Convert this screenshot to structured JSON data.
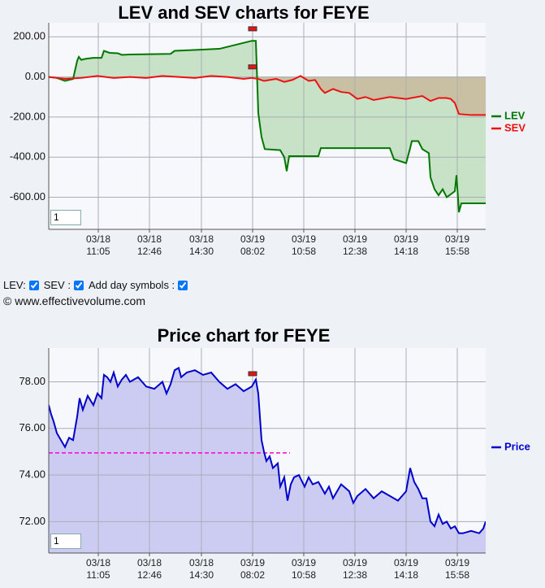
{
  "chart_data": [
    {
      "type": "line",
      "title": "LEV and SEV charts for FEYE",
      "zoom": "1",
      "xlim": [
        0,
        538
      ],
      "xticks": [
        {
          "value": 61,
          "label": "03/18 11:05"
        },
        {
          "value": 124,
          "label": "03/18 12:46"
        },
        {
          "value": 188,
          "label": "03/18 14:30"
        },
        {
          "value": 251,
          "label": "03/19 08:02"
        },
        {
          "value": 314,
          "label": "03/19 10:58"
        },
        {
          "value": 377,
          "label": "03/19 12:38"
        },
        {
          "value": 440,
          "label": "03/19 14:18"
        },
        {
          "value": 503,
          "label": "03/19 15:58"
        }
      ],
      "ylim": [
        -760,
        270
      ],
      "yticks": [
        {
          "value": 200,
          "label": "200.00"
        },
        {
          "value": 0,
          "label": "0.00"
        },
        {
          "value": -200,
          "label": "-200.00"
        },
        {
          "value": -400,
          "label": "-400.00"
        },
        {
          "value": -600,
          "label": "-600.00"
        }
      ],
      "grid": true,
      "legend": "right",
      "series": [
        {
          "name": "LEV",
          "color": "#007700",
          "fill": "#c8e2c8",
          "x": [
            0,
            10,
            20,
            30,
            35,
            37,
            40,
            45,
            55,
            65,
            68,
            75,
            85,
            90,
            100,
            150,
            155,
            210,
            240,
            245,
            250,
            255,
            258,
            262,
            266,
            285,
            290,
            293,
            296,
            332,
            335,
            420,
            425,
            440,
            445,
            447,
            455,
            460,
            468,
            470,
            475,
            480,
            485,
            490,
            500,
            502,
            504,
            505,
            508,
            538
          ],
          "values": [
            0,
            -5,
            -20,
            -10,
            80,
            100,
            85,
            90,
            95,
            95,
            130,
            120,
            118,
            110,
            112,
            115,
            130,
            140,
            170,
            175,
            180,
            180,
            -180,
            -300,
            -360,
            -365,
            -400,
            -470,
            -395,
            -395,
            -355,
            -355,
            -410,
            -430,
            -355,
            -320,
            -320,
            -360,
            -380,
            -500,
            -560,
            -590,
            -560,
            -600,
            -570,
            -490,
            -610,
            -675,
            -630,
            -630
          ]
        },
        {
          "name": "SEV",
          "color": "#ee1111",
          "fill": "#c9a88a",
          "x": [
            0,
            20,
            40,
            60,
            80,
            100,
            120,
            140,
            160,
            180,
            200,
            220,
            240,
            250,
            258,
            265,
            280,
            290,
            300,
            310,
            320,
            328,
            335,
            340,
            350,
            360,
            370,
            380,
            390,
            400,
            420,
            440,
            460,
            470,
            480,
            490,
            495,
            500,
            505,
            520,
            538
          ],
          "values": [
            0,
            -10,
            -5,
            5,
            -5,
            0,
            -5,
            5,
            0,
            -5,
            5,
            0,
            -10,
            -5,
            -10,
            -20,
            -10,
            -25,
            -15,
            5,
            -20,
            -15,
            -60,
            -80,
            -60,
            -75,
            -80,
            -110,
            -100,
            -115,
            -100,
            -110,
            -95,
            -120,
            -105,
            -105,
            -110,
            -130,
            -185,
            -190,
            -190
          ]
        }
      ],
      "day_markers": [
        {
          "x": 251,
          "y": 240
        },
        {
          "x": 251,
          "y": 50
        }
      ]
    },
    {
      "type": "line",
      "title": "Price chart for FEYE",
      "zoom": "1",
      "xlim": [
        0,
        538
      ],
      "xticks": [
        {
          "value": 61,
          "label": "03/18 11:05"
        },
        {
          "value": 124,
          "label": "03/18 12:46"
        },
        {
          "value": 188,
          "label": "03/18 14:30"
        },
        {
          "value": 251,
          "label": "03/19 08:02"
        },
        {
          "value": 314,
          "label": "03/19 10:58"
        },
        {
          "value": 377,
          "label": "03/19 12:38"
        },
        {
          "value": 440,
          "label": "03/19 14:18"
        },
        {
          "value": 503,
          "label": "03/19 15:58"
        }
      ],
      "ylim": [
        70.65,
        79.45
      ],
      "yticks": [
        {
          "value": 78,
          "label": "78.00"
        },
        {
          "value": 76,
          "label": "76.00"
        },
        {
          "value": 74,
          "label": "74.00"
        },
        {
          "value": 72,
          "label": "72.00"
        }
      ],
      "grid": true,
      "legend": "right",
      "series": [
        {
          "name": "Price",
          "color": "#0000cc",
          "fill": "#ccccf2",
          "x": [
            0,
            3,
            6,
            10,
            15,
            20,
            25,
            30,
            35,
            38,
            42,
            48,
            55,
            60,
            65,
            68,
            72,
            76,
            80,
            85,
            90,
            95,
            100,
            110,
            120,
            130,
            140,
            145,
            150,
            155,
            160,
            163,
            170,
            180,
            190,
            200,
            210,
            220,
            230,
            240,
            250,
            255,
            258,
            260,
            262,
            265,
            268,
            272,
            276,
            282,
            285,
            290,
            294,
            298,
            302,
            308,
            315,
            320,
            325,
            332,
            340,
            345,
            350,
            360,
            370,
            375,
            380,
            390,
            400,
            410,
            420,
            430,
            440,
            445,
            450,
            455,
            460,
            465,
            470,
            475,
            480,
            485,
            490,
            495,
            500,
            505,
            510,
            520,
            530,
            535,
            538
          ],
          "values": [
            77.0,
            76.6,
            76.3,
            75.8,
            75.5,
            75.2,
            75.6,
            75.5,
            76.5,
            77.3,
            76.8,
            77.4,
            77.0,
            77.5,
            77.3,
            78.3,
            78.2,
            78.0,
            78.4,
            77.8,
            78.1,
            78.3,
            78.0,
            78.2,
            77.8,
            77.7,
            78.0,
            77.5,
            77.9,
            78.5,
            78.6,
            78.2,
            78.4,
            78.5,
            78.3,
            78.4,
            78.0,
            77.7,
            77.9,
            77.6,
            77.8,
            78.1,
            77.5,
            76.5,
            75.5,
            75.0,
            74.6,
            74.8,
            74.3,
            74.5,
            73.5,
            73.9,
            72.9,
            73.6,
            73.9,
            74.0,
            73.5,
            73.9,
            73.6,
            73.7,
            73.2,
            73.5,
            73.0,
            73.6,
            73.3,
            72.8,
            73.1,
            73.4,
            73.0,
            73.3,
            73.1,
            72.9,
            73.3,
            74.3,
            73.7,
            73.4,
            73.0,
            73.0,
            72.0,
            71.8,
            72.3,
            71.9,
            72.0,
            71.7,
            71.8,
            71.5,
            71.5,
            71.6,
            71.5,
            71.7,
            72.0
          ]
        }
      ],
      "reference_line": {
        "y": 74.95,
        "x": [
          0,
          297
        ],
        "color": "#ff00cc"
      },
      "day_markers": [
        {
          "x": 251,
          "y": 78.35
        }
      ]
    }
  ],
  "controls": [
    {
      "label": "LEV:",
      "checked": true
    },
    {
      "label": "SEV :",
      "checked": true
    },
    {
      "label": "Add day symbols :",
      "checked": true
    }
  ],
  "footer": "© www.effectivevolume.com"
}
